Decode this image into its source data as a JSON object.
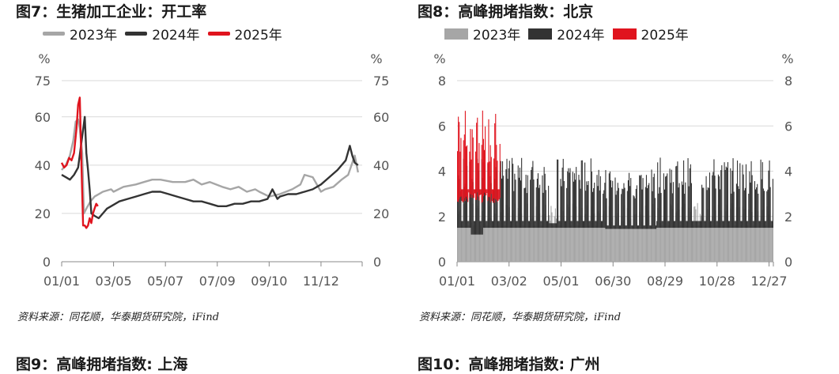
{
  "figures": [
    {
      "title": "图7：生猪加工企业：开工率",
      "source": "资料来源：同花顺，华泰期货研究院，iFind",
      "legend": [
        {
          "name": "2023年",
          "color": "#a6a6a6"
        },
        {
          "name": "2024年",
          "color": "#333333"
        },
        {
          "name": "2025年",
          "color": "#e0141e"
        }
      ]
    },
    {
      "title": "图8：高峰拥堵指数：北京",
      "source": "资料来源：同花顺，华泰期货研究院，iFind",
      "legend": [
        {
          "name": "2023年",
          "color": "#a6a6a6"
        },
        {
          "name": "2024年",
          "color": "#333333"
        },
        {
          "name": "2025年",
          "color": "#e0141e"
        }
      ]
    }
  ],
  "bottom_titles": [
    "图9：高峰拥堵指数: 上海",
    "图10：高峰拥堵指数: 广州"
  ],
  "chart_data": [
    {
      "type": "line",
      "unit_left": "%",
      "unit_right": "%",
      "ylim": [
        0,
        75
      ],
      "yticks": [
        "0",
        "20",
        "40",
        "60",
        "75"
      ],
      "ytick_values": [
        0,
        20,
        40,
        60,
        75
      ],
      "xticks": [
        "01/01",
        "03/05",
        "05/07",
        "07/09",
        "09/10",
        "11/12"
      ],
      "xtick_days": [
        0,
        63,
        126,
        189,
        252,
        315
      ],
      "xlim_days": [
        0,
        365
      ],
      "grid": true,
      "legend_position": "top",
      "series": [
        {
          "name": "2023年",
          "color": "#a6a6a6",
          "x": [
            0,
            5,
            10,
            14,
            17,
            20,
            22,
            25,
            27,
            30,
            35,
            40,
            50,
            60,
            63,
            75,
            90,
            100,
            110,
            120,
            135,
            150,
            160,
            170,
            180,
            195,
            205,
            215,
            225,
            235,
            240,
            252,
            265,
            280,
            290,
            295,
            305,
            315,
            320,
            330,
            340,
            348,
            352,
            356,
            360
          ],
          "y": [
            38,
            40,
            44,
            50,
            58,
            59,
            55,
            45,
            20,
            22,
            25,
            27,
            29,
            30,
            29,
            31,
            32,
            33,
            34,
            34,
            33,
            33,
            34,
            32,
            33,
            31,
            30,
            31,
            29,
            30,
            29,
            27,
            28,
            30,
            32,
            36,
            35,
            29,
            30,
            31,
            34,
            36,
            40,
            44,
            37
          ]
        },
        {
          "name": "2024年",
          "color": "#333333",
          "x": [
            0,
            5,
            10,
            15,
            20,
            25,
            28,
            30,
            32,
            34,
            36,
            40,
            45,
            50,
            55,
            60,
            70,
            80,
            90,
            100,
            110,
            120,
            130,
            140,
            150,
            160,
            170,
            180,
            190,
            200,
            210,
            220,
            230,
            240,
            250,
            256,
            262,
            265,
            275,
            285,
            295,
            305,
            315,
            325,
            335,
            345,
            350,
            353,
            356,
            360
          ],
          "y": [
            36,
            35,
            34,
            36,
            39,
            52,
            60,
            45,
            38,
            30,
            20,
            19,
            18,
            20,
            22,
            23,
            25,
            26,
            27,
            28,
            29,
            29,
            28,
            27,
            26,
            25,
            25,
            24,
            23,
            23,
            24,
            24,
            25,
            25,
            26,
            30,
            26,
            27,
            28,
            28,
            29,
            30,
            32,
            35,
            38,
            42,
            48,
            44,
            41,
            40
          ]
        },
        {
          "name": "2025年",
          "color": "#e0141e",
          "x": [
            0,
            3,
            6,
            9,
            12,
            15,
            18,
            20,
            22,
            24,
            26,
            28,
            30,
            32,
            34,
            36,
            38,
            40,
            42,
            44
          ],
          "y": [
            41,
            39,
            40,
            43,
            42,
            45,
            55,
            65,
            68,
            40,
            15,
            15,
            14,
            15,
            18,
            16,
            20,
            22,
            24,
            23
          ]
        }
      ]
    },
    {
      "type": "bar",
      "unit_left": "%",
      "unit_right": "%",
      "ylim": [
        0,
        8
      ],
      "yticks": [
        "0",
        "2",
        "4",
        "6",
        "8"
      ],
      "ytick_values": [
        0,
        2,
        4,
        6,
        8
      ],
      "xticks": [
        "01/01",
        "03/02",
        "05/01",
        "06/30",
        "08/29",
        "10/28",
        "12/27"
      ],
      "xtick_days": [
        0,
        60,
        120,
        180,
        240,
        300,
        360
      ],
      "xlim_days": [
        0,
        365
      ],
      "grid": true,
      "legend_position": "top",
      "series": [
        {
          "name": "2023年",
          "color": "#a6a6a6",
          "x": [
            0,
            365
          ],
          "y_low": 0,
          "y_high": [
            2.2,
            2.2
          ],
          "y_base": [
            1.5,
            1.5
          ]
        },
        {
          "name": "2024年",
          "color": "#333333",
          "x": [
            0,
            365
          ],
          "y_low": [
            1.5,
            1.5
          ],
          "y_high": [
            4.0,
            4.0
          ],
          "y_base": [
            1.5,
            1.5
          ]
        },
        {
          "name": "2025年",
          "color": "#e0141e",
          "x": [
            0,
            50
          ],
          "y_low": [
            2.6,
            2.6
          ],
          "y_high": [
            6.5,
            6.5
          ],
          "y_base": [
            2.6,
            2.6
          ]
        }
      ]
    }
  ]
}
